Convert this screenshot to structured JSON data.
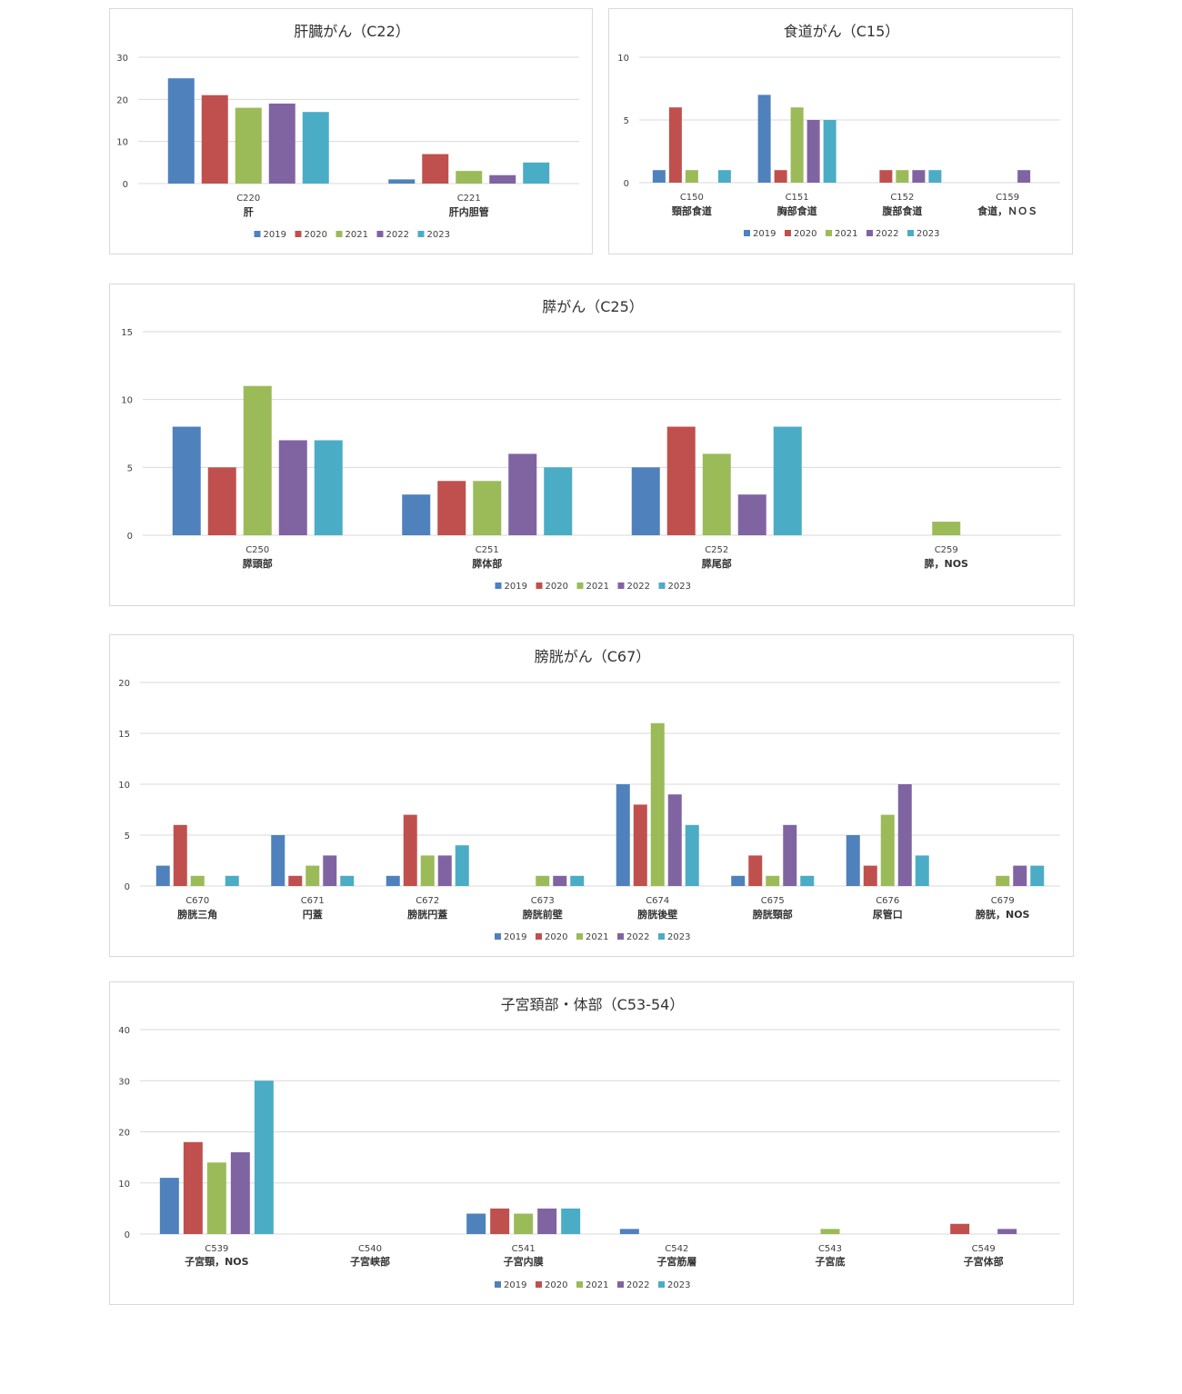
{
  "colors": [
    "#4f81bd",
    "#c0504d",
    "#9bbb59",
    "#8064a2",
    "#4bacc6"
  ],
  "chart_data": [
    {
      "type": "bar",
      "title": "肝臓がん（C22）",
      "ylim": [
        0,
        30
      ],
      "yticks": [
        "0",
        "10",
        "20",
        "30"
      ],
      "grid": true,
      "legend": "bottom",
      "categories": [
        {
          "code": "C220",
          "name": "肝"
        },
        {
          "code": "C221",
          "name": "肝内胆管"
        }
      ],
      "series": [
        {
          "name": "2019",
          "values": [
            25,
            1
          ]
        },
        {
          "name": "2020",
          "values": [
            21,
            7
          ]
        },
        {
          "name": "2021",
          "values": [
            18,
            3
          ]
        },
        {
          "name": "2022",
          "values": [
            19,
            2
          ]
        },
        {
          "name": "2023",
          "values": [
            17,
            5
          ]
        }
      ]
    },
    {
      "type": "bar",
      "title": "食道がん（C15）",
      "ylim": [
        0,
        10
      ],
      "yticks": [
        "0",
        "5",
        "10"
      ],
      "grid": true,
      "legend": "bottom",
      "categories": [
        {
          "code": "C150",
          "name": "頸部食道"
        },
        {
          "code": "C151",
          "name": "胸部食道"
        },
        {
          "code": "C152",
          "name": "腹部食道"
        },
        {
          "code": "C159",
          "name": "食道，ＮＯＳ"
        }
      ],
      "series": [
        {
          "name": "2019",
          "values": [
            1,
            7,
            0,
            0
          ]
        },
        {
          "name": "2020",
          "values": [
            6,
            1,
            1,
            0
          ]
        },
        {
          "name": "2021",
          "values": [
            1,
            6,
            1,
            0
          ]
        },
        {
          "name": "2022",
          "values": [
            0,
            5,
            1,
            1
          ]
        },
        {
          "name": "2023",
          "values": [
            1,
            5,
            1,
            0
          ]
        }
      ]
    },
    {
      "type": "bar",
      "title": "膵がん（C25）",
      "ylim": [
        0,
        15
      ],
      "yticks": [
        "0",
        "5",
        "10",
        "15"
      ],
      "grid": true,
      "legend": "bottom",
      "categories": [
        {
          "code": "C250",
          "name": "膵頭部"
        },
        {
          "code": "C251",
          "name": "膵体部"
        },
        {
          "code": "C252",
          "name": "膵尾部"
        },
        {
          "code": "C259",
          "name": "膵，NOS"
        }
      ],
      "series": [
        {
          "name": "2019",
          "values": [
            8,
            3,
            5,
            0
          ]
        },
        {
          "name": "2020",
          "values": [
            5,
            4,
            8,
            0
          ]
        },
        {
          "name": "2021",
          "values": [
            11,
            4,
            6,
            1
          ]
        },
        {
          "name": "2022",
          "values": [
            7,
            6,
            3,
            0
          ]
        },
        {
          "name": "2023",
          "values": [
            7,
            5,
            8,
            0
          ]
        }
      ]
    },
    {
      "type": "bar",
      "title": "膀胱がん（C67）",
      "ylim": [
        0,
        20
      ],
      "yticks": [
        "0",
        "5",
        "10",
        "15",
        "20"
      ],
      "grid": true,
      "legend": "bottom",
      "categories": [
        {
          "code": "C670",
          "name": "膀胱三角"
        },
        {
          "code": "C671",
          "name": "円蓋"
        },
        {
          "code": "C672",
          "name": "膀胱円蓋"
        },
        {
          "code": "C673",
          "name": "膀胱前壁"
        },
        {
          "code": "C674",
          "name": "膀胱後壁"
        },
        {
          "code": "C675",
          "name": "膀胱頸部"
        },
        {
          "code": "C676",
          "name": "尿管口"
        },
        {
          "code": "C679",
          "name": "膀胱，NOS"
        }
      ],
      "series": [
        {
          "name": "2019",
          "values": [
            2,
            5,
            1,
            0,
            10,
            1,
            5,
            0
          ]
        },
        {
          "name": "2020",
          "values": [
            6,
            1,
            7,
            0,
            8,
            3,
            2,
            0
          ]
        },
        {
          "name": "2021",
          "values": [
            1,
            2,
            3,
            1,
            16,
            1,
            7,
            1
          ]
        },
        {
          "name": "2022",
          "values": [
            0,
            3,
            3,
            1,
            9,
            6,
            10,
            2
          ]
        },
        {
          "name": "2023",
          "values": [
            1,
            1,
            4,
            1,
            6,
            1,
            3,
            2
          ]
        }
      ]
    },
    {
      "type": "bar",
      "title": "子宮頚部・体部（C53-54）",
      "ylim": [
        0,
        40
      ],
      "yticks": [
        "0",
        "10",
        "20",
        "30",
        "40"
      ],
      "grid": true,
      "legend": "bottom",
      "categories": [
        {
          "code": "C539",
          "name": "子宮頸，NOS"
        },
        {
          "code": "C540",
          "name": "子宮峡部"
        },
        {
          "code": "C541",
          "name": "子宮内膜"
        },
        {
          "code": "C542",
          "name": "子宮筋層"
        },
        {
          "code": "C543",
          "name": "子宮底"
        },
        {
          "code": "C549",
          "name": "子宮体部"
        }
      ],
      "series": [
        {
          "name": "2019",
          "values": [
            11,
            0,
            4,
            1,
            0,
            0
          ]
        },
        {
          "name": "2020",
          "values": [
            18,
            0,
            5,
            0,
            0,
            2
          ]
        },
        {
          "name": "2021",
          "values": [
            14,
            0,
            4,
            0,
            1,
            0
          ]
        },
        {
          "name": "2022",
          "values": [
            16,
            0,
            5,
            0,
            0,
            1
          ]
        },
        {
          "name": "2023",
          "values": [
            30,
            0,
            5,
            0,
            0,
            0
          ]
        }
      ]
    }
  ]
}
